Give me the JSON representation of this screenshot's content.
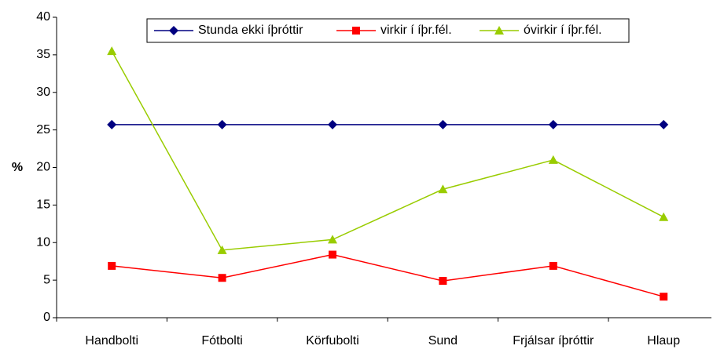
{
  "chart_data": {
    "type": "line",
    "ylabel": "%",
    "categories": [
      "Handbolti",
      "Fótbolti",
      "Körfubolti",
      "Sund",
      "Frjálsar íþróttir",
      "Hlaup"
    ],
    "series": [
      {
        "name": "Stunda ekki íþróttir",
        "color": "#000080",
        "marker": "diamond",
        "values": [
          25.7,
          25.7,
          25.7,
          25.7,
          25.7,
          25.7
        ]
      },
      {
        "name": "virkir í íþr.fél.",
        "color": "#ff0000",
        "marker": "square",
        "values": [
          6.9,
          5.3,
          8.4,
          4.9,
          6.9,
          2.8
        ]
      },
      {
        "name": "óvirkir í íþr.fél.",
        "color": "#99cc00",
        "marker": "triangle",
        "values": [
          35.5,
          9.0,
          10.4,
          17.1,
          21.0,
          13.4
        ]
      }
    ],
    "ylim": [
      0,
      40
    ],
    "yticks": [
      0,
      5,
      10,
      15,
      20,
      25,
      30,
      35,
      40
    ],
    "grid": false,
    "legend": "top"
  }
}
